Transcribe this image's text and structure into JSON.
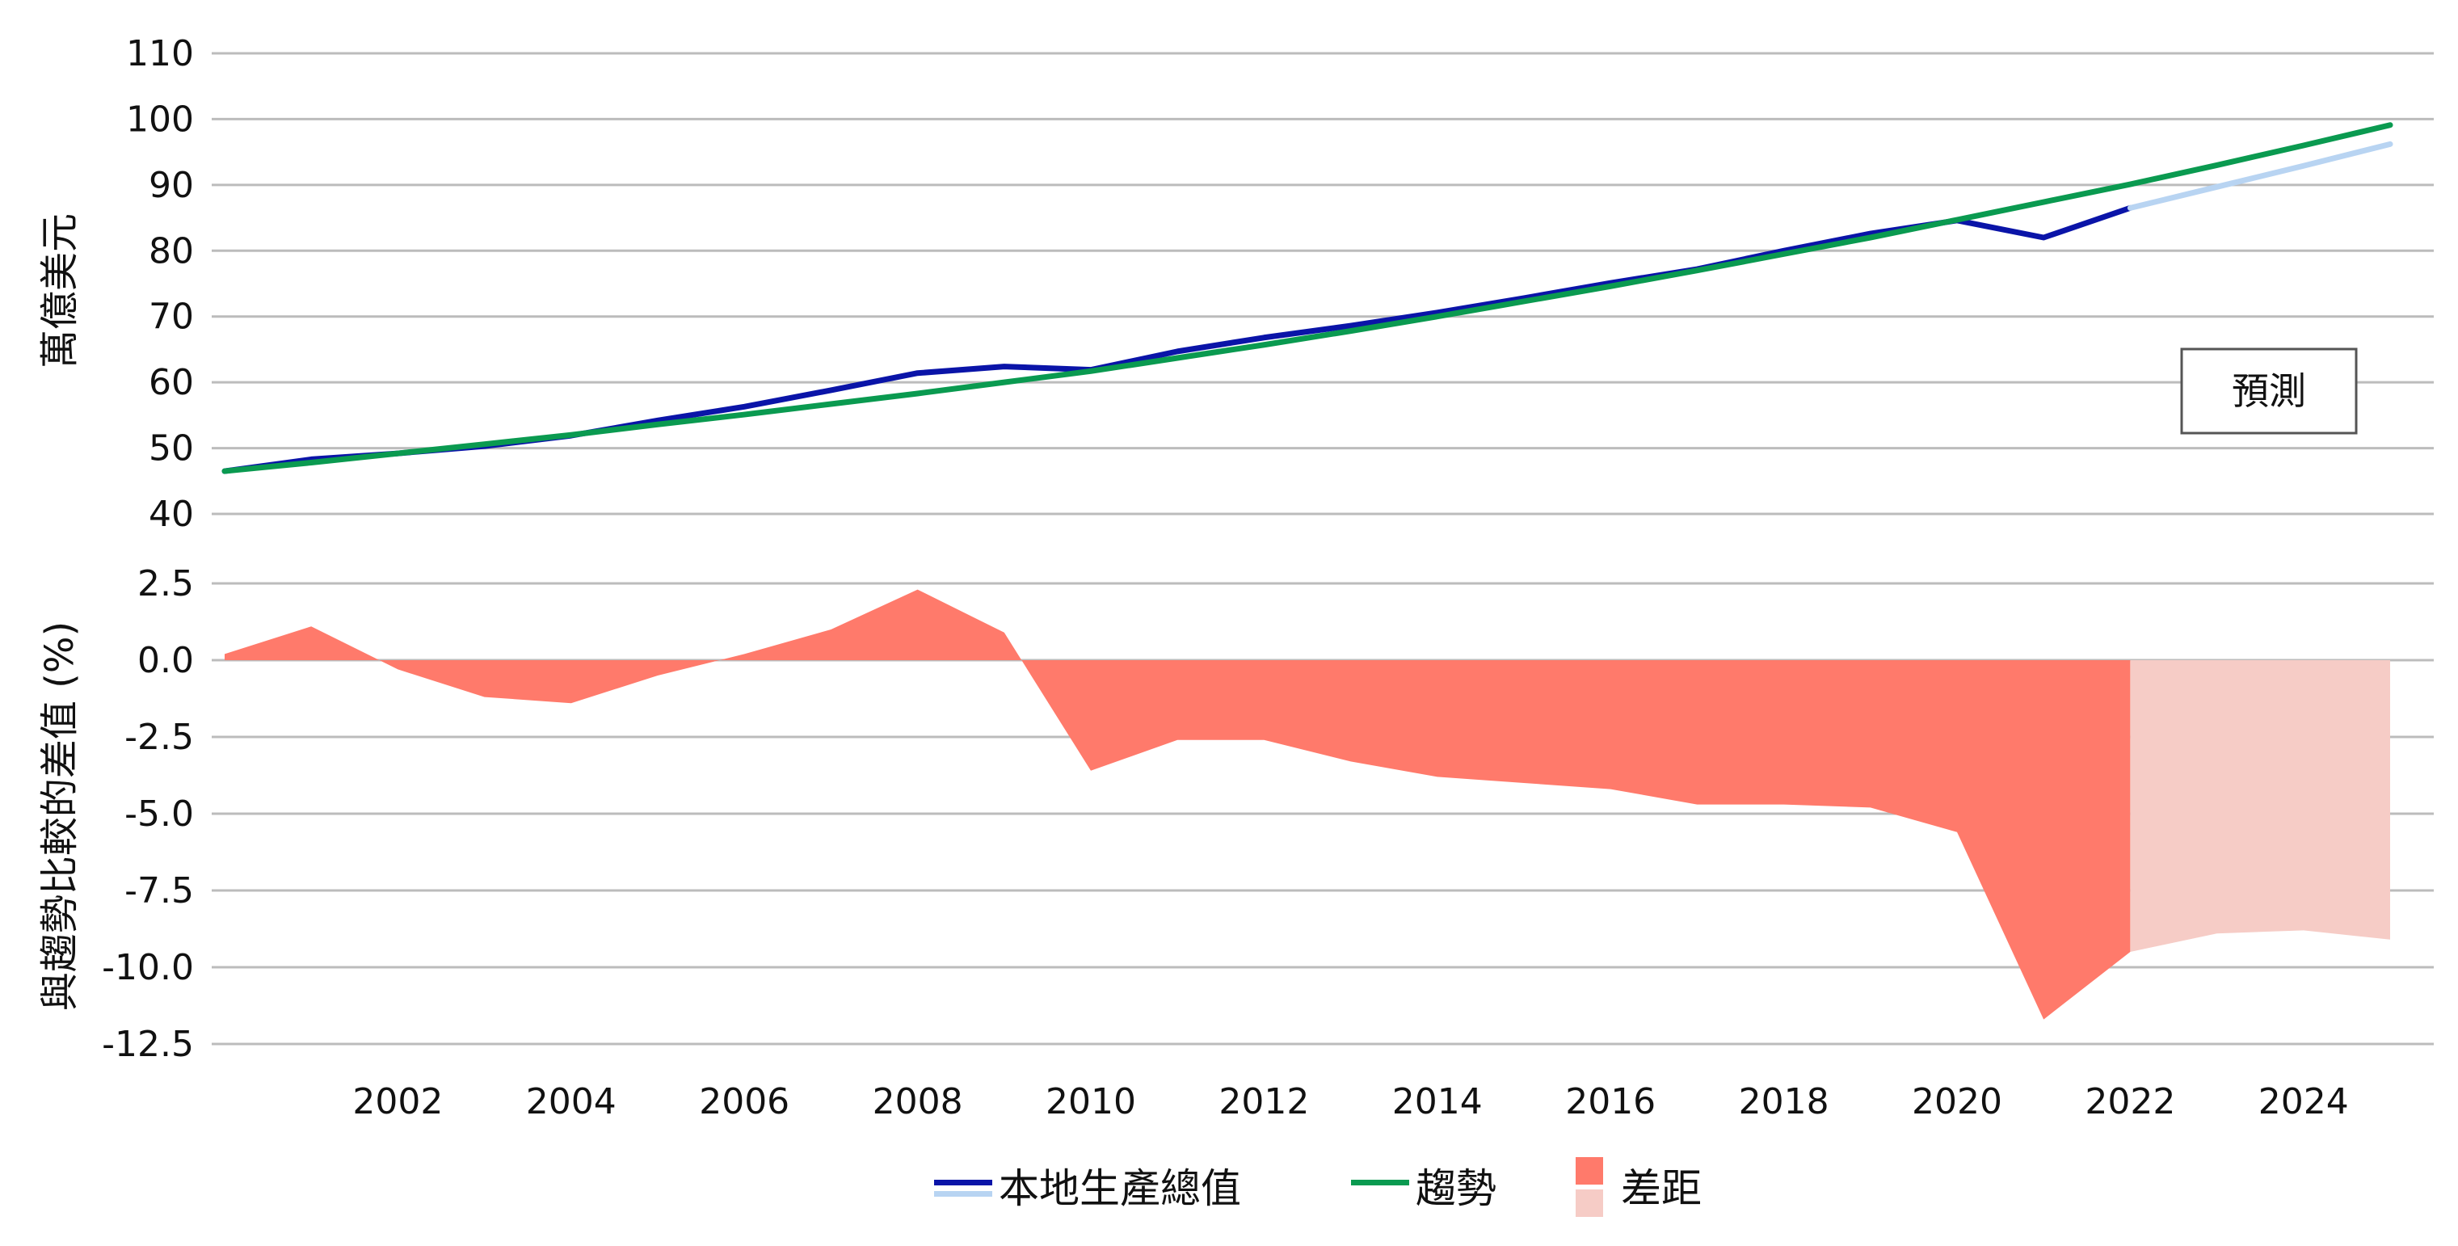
{
  "chart_data": {
    "years": [
      2000,
      2001,
      2002,
      2003,
      2004,
      2005,
      2006,
      2007,
      2008,
      2009,
      2010,
      2011,
      2012,
      2013,
      2014,
      2015,
      2016,
      2017,
      2018,
      2019,
      2020,
      2021,
      2022,
      2023,
      2024,
      2025
    ],
    "top": {
      "type": "line",
      "ylabel": "萬億美元",
      "ylim": [
        40,
        110
      ],
      "yticks": [
        110,
        100,
        90,
        80,
        70,
        60,
        50,
        40
      ],
      "series": [
        {
          "key": "gdp",
          "name": "本地生產總值",
          "color": "#0a14a8",
          "values": [
            46.5,
            48.3,
            49.2,
            50.3,
            51.9,
            54.2,
            56.3,
            58.8,
            61.4,
            62.4,
            61.9,
            64.7,
            66.8,
            68.6,
            70.6,
            72.8,
            75.1,
            77.2,
            80.0,
            82.6,
            84.6,
            82.0,
            86.5,
            null,
            null,
            null
          ]
        },
        {
          "key": "gdp_forecast",
          "name": "",
          "color": "#b8d4f2",
          "values": [
            null,
            null,
            null,
            null,
            null,
            null,
            null,
            null,
            null,
            null,
            null,
            null,
            null,
            null,
            null,
            null,
            null,
            null,
            null,
            null,
            null,
            null,
            86.5,
            89.7,
            92.9,
            96.2
          ]
        },
        {
          "key": "trend",
          "name": "趨勢",
          "color": "#0a9a50",
          "values": [
            46.5,
            47.8,
            49.2,
            50.6,
            52.0,
            53.6,
            55.1,
            56.7,
            58.3,
            60.0,
            61.7,
            63.7,
            65.7,
            67.8,
            70.0,
            72.3,
            74.6,
            77.0,
            79.5,
            82.0,
            84.7,
            87.4,
            90.1,
            93.0,
            96.0,
            99.1
          ]
        }
      ]
    },
    "bottom": {
      "type": "area",
      "ylabel": "與趨勢比較的差值 (%)",
      "ylim": [
        -12.5,
        2.5
      ],
      "yticks": [
        "2.5",
        "0.0",
        "-2.5",
        "-5.0",
        "-7.5",
        "-10.0",
        "-12.5"
      ],
      "series": [
        {
          "key": "gap",
          "name": "差距",
          "color": "#ff7a6b",
          "values": [
            0.2,
            1.1,
            -0.3,
            -1.2,
            -1.4,
            -0.5,
            0.2,
            1.0,
            2.3,
            0.9,
            -3.6,
            -2.6,
            -2.6,
            -3.3,
            -3.8,
            -4.0,
            -4.2,
            -4.7,
            -4.7,
            -4.8,
            -5.6,
            -11.7,
            -9.5,
            null,
            null,
            null
          ]
        },
        {
          "key": "gap_forecast",
          "name": "",
          "color": "#f6ccc6",
          "values": [
            null,
            null,
            null,
            null,
            null,
            null,
            null,
            null,
            null,
            null,
            null,
            null,
            null,
            null,
            null,
            null,
            null,
            null,
            null,
            null,
            null,
            null,
            -9.5,
            -8.9,
            -8.8,
            -9.1
          ]
        }
      ]
    },
    "xticks": [
      "2002",
      "2004",
      "2006",
      "2008",
      "2010",
      "2012",
      "2014",
      "2016",
      "2018",
      "2020",
      "2022",
      "2024"
    ],
    "annotation": "預測",
    "legend": [
      {
        "label": "本地生產總值",
        "colors": [
          "#0a14a8",
          "#b8d4f2"
        ],
        "shape": "line"
      },
      {
        "label": "趨勢",
        "colors": [
          "#0a9a50"
        ],
        "shape": "line"
      },
      {
        "label": "差距",
        "colors": [
          "#ff7a6b",
          "#f6ccc6"
        ],
        "shape": "box"
      }
    ],
    "grid": true,
    "legend_position": "bottom"
  }
}
